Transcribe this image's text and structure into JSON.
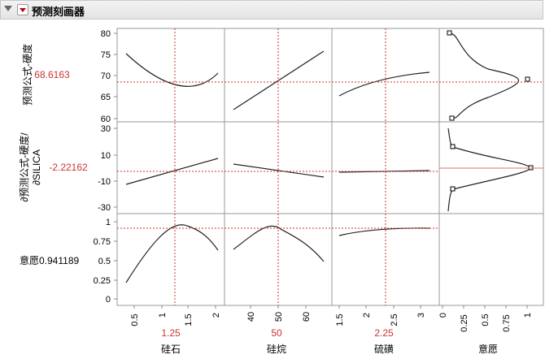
{
  "header": {
    "title": "预测刻画器"
  },
  "rows": [
    {
      "label": "预测公式-硬度",
      "value": "68.6163",
      "ticks": [
        "60",
        "65",
        "70",
        "75",
        "80"
      ]
    },
    {
      "label_lines": [
        "∂预测公式-硬度/",
        "∂SILICA"
      ],
      "value": "-2.22162",
      "ticks": [
        "-30",
        "-10",
        "10",
        "30"
      ]
    },
    {
      "label": "意愿",
      "value": "0.941189",
      "ticks": [
        "0",
        "0.25",
        "0.5",
        "0.75",
        "1"
      ]
    }
  ],
  "factors": [
    {
      "name": "硅石",
      "value": "1.25",
      "ticks": [
        "0.5",
        "1",
        "1.5",
        "2"
      ]
    },
    {
      "name": "硅烷",
      "value": "50",
      "ticks": [
        "40",
        "50",
        "60"
      ]
    },
    {
      "name": "硫磺",
      "value": "2.25",
      "ticks": [
        "1.5",
        "2",
        "2.5",
        "3"
      ]
    },
    {
      "name": "意愿",
      "value": "",
      "ticks": [
        "0",
        "0.25",
        "0.5",
        "0.75",
        "1"
      ]
    }
  ],
  "colors": {
    "accent": "#cc3333",
    "grid": "#999999",
    "curve": "#222222"
  }
}
